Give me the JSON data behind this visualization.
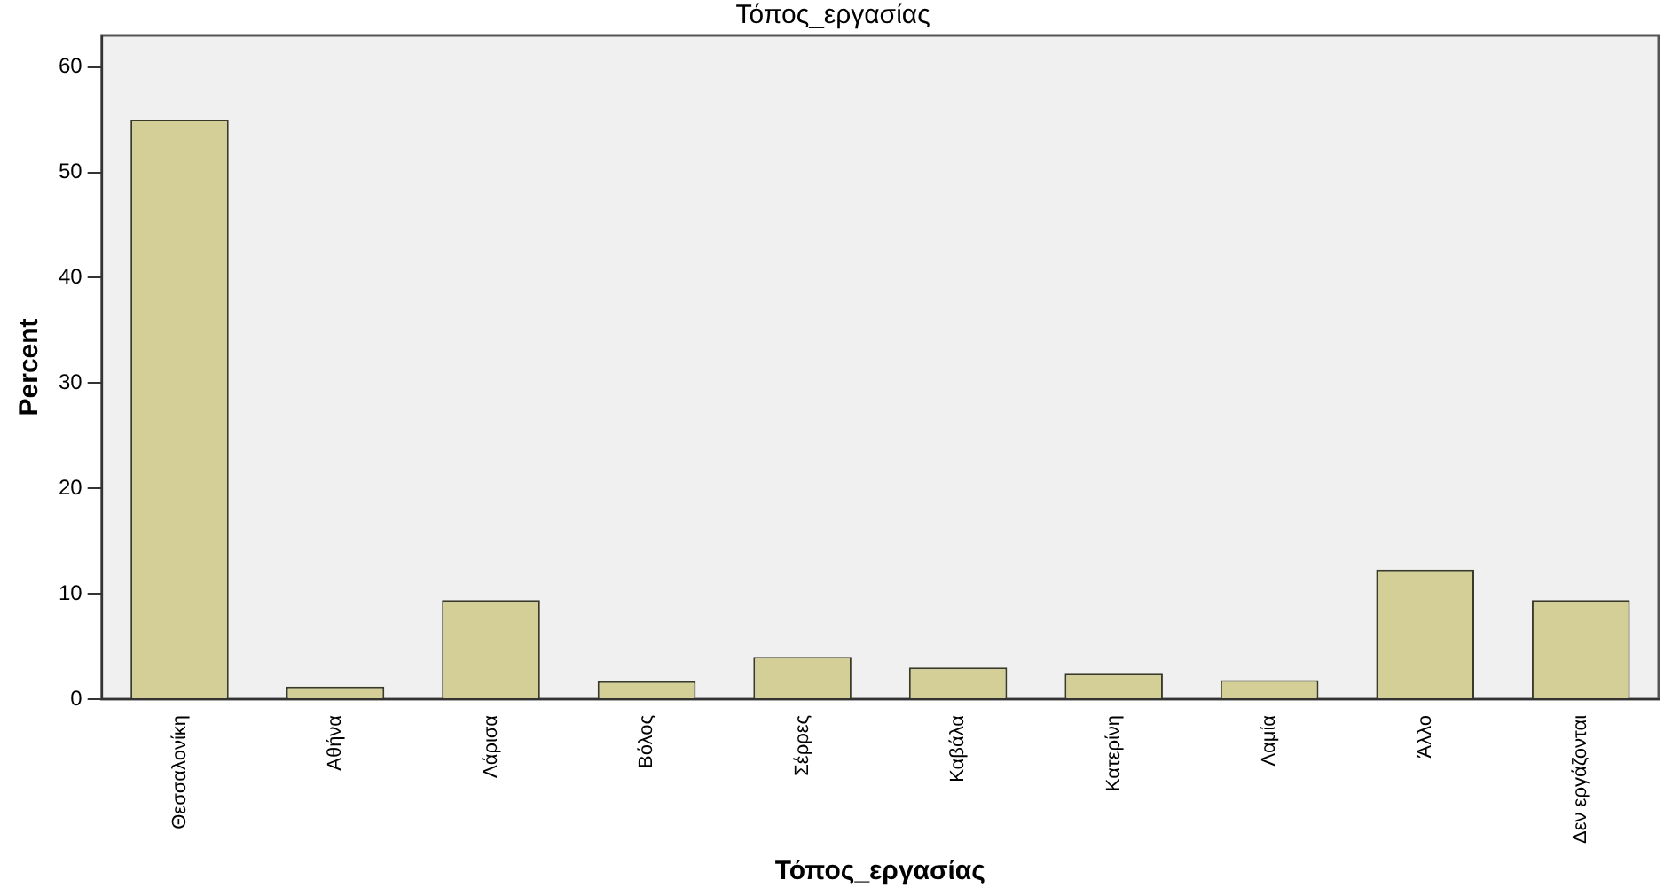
{
  "chart_data": {
    "type": "bar",
    "title": "Τόπος_εργασίας",
    "xlabel": "Τόπος_εργασίας",
    "ylabel": "Percent",
    "categories": [
      "Θεσσαλονίκη",
      "Αθήνα",
      "Λάρισα",
      "Βόλος",
      "Σέρρες",
      "Καβάλα",
      "Κατερίνη",
      "Λαμία",
      "Άλλο",
      "Δεν εργάζονται"
    ],
    "values": [
      55.0,
      1.2,
      9.4,
      1.7,
      4.0,
      3.0,
      2.4,
      1.8,
      12.3,
      9.4
    ],
    "color": "#d3cf96",
    "ylim": [
      0,
      63
    ],
    "yticks": [
      0,
      10,
      20,
      30,
      40,
      50,
      60
    ],
    "grid": false,
    "legend": false
  }
}
